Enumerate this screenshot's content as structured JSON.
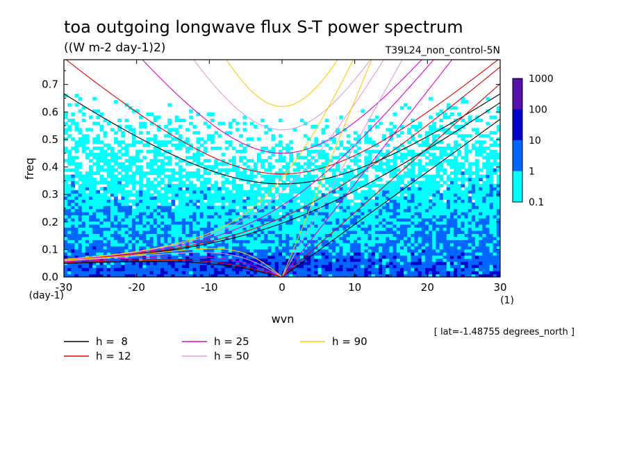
{
  "chart_data": {
    "type": "heatmap",
    "title": "toa outgoing longwave flux S-T power spectrum",
    "subtitle": "((W m-2 day-1)2)",
    "dataset": "T39L24_non_control-5N",
    "xlabel": "wvn",
    "xunit": "(1)",
    "ylabel": "freq",
    "yunit": "(day-1)",
    "xlim": [
      -30,
      30
    ],
    "ylim": [
      0,
      0.79
    ],
    "xticks": [
      "-30",
      "-20",
      "-10",
      "0",
      "10",
      "20",
      "30"
    ],
    "xtick_values": [
      -30,
      -20,
      -10,
      0,
      10,
      20,
      30
    ],
    "yticks": [
      "0.0",
      "0.1",
      "0.2",
      "0.3",
      "0.4",
      "0.5",
      "0.6",
      "0.7"
    ],
    "ytick_values": [
      0,
      0.1,
      0.2,
      0.3,
      0.4,
      0.5,
      0.6,
      0.7
    ],
    "footnote": "[ lat=-1.48755 degrees_north ]",
    "colorbar": {
      "levels": [
        "0.1",
        "1",
        "10",
        "100",
        "1000"
      ],
      "colors": [
        "#00ffff",
        "#0066ff",
        "#0000cc",
        "#5511aa"
      ]
    },
    "dispersion_curves": [
      {
        "label": "h =  8",
        "color": "#000000"
      },
      {
        "label": "h = 12",
        "color": "#dd0000"
      },
      {
        "label": "h = 25",
        "color": "#dd00cc"
      },
      {
        "label": "h = 50",
        "color": "#dd99dd"
      },
      {
        "label": "h = 90",
        "color": "#ffcc00"
      }
    ],
    "equivalent_depths_m": [
      8,
      12,
      25,
      50,
      90
    ]
  }
}
